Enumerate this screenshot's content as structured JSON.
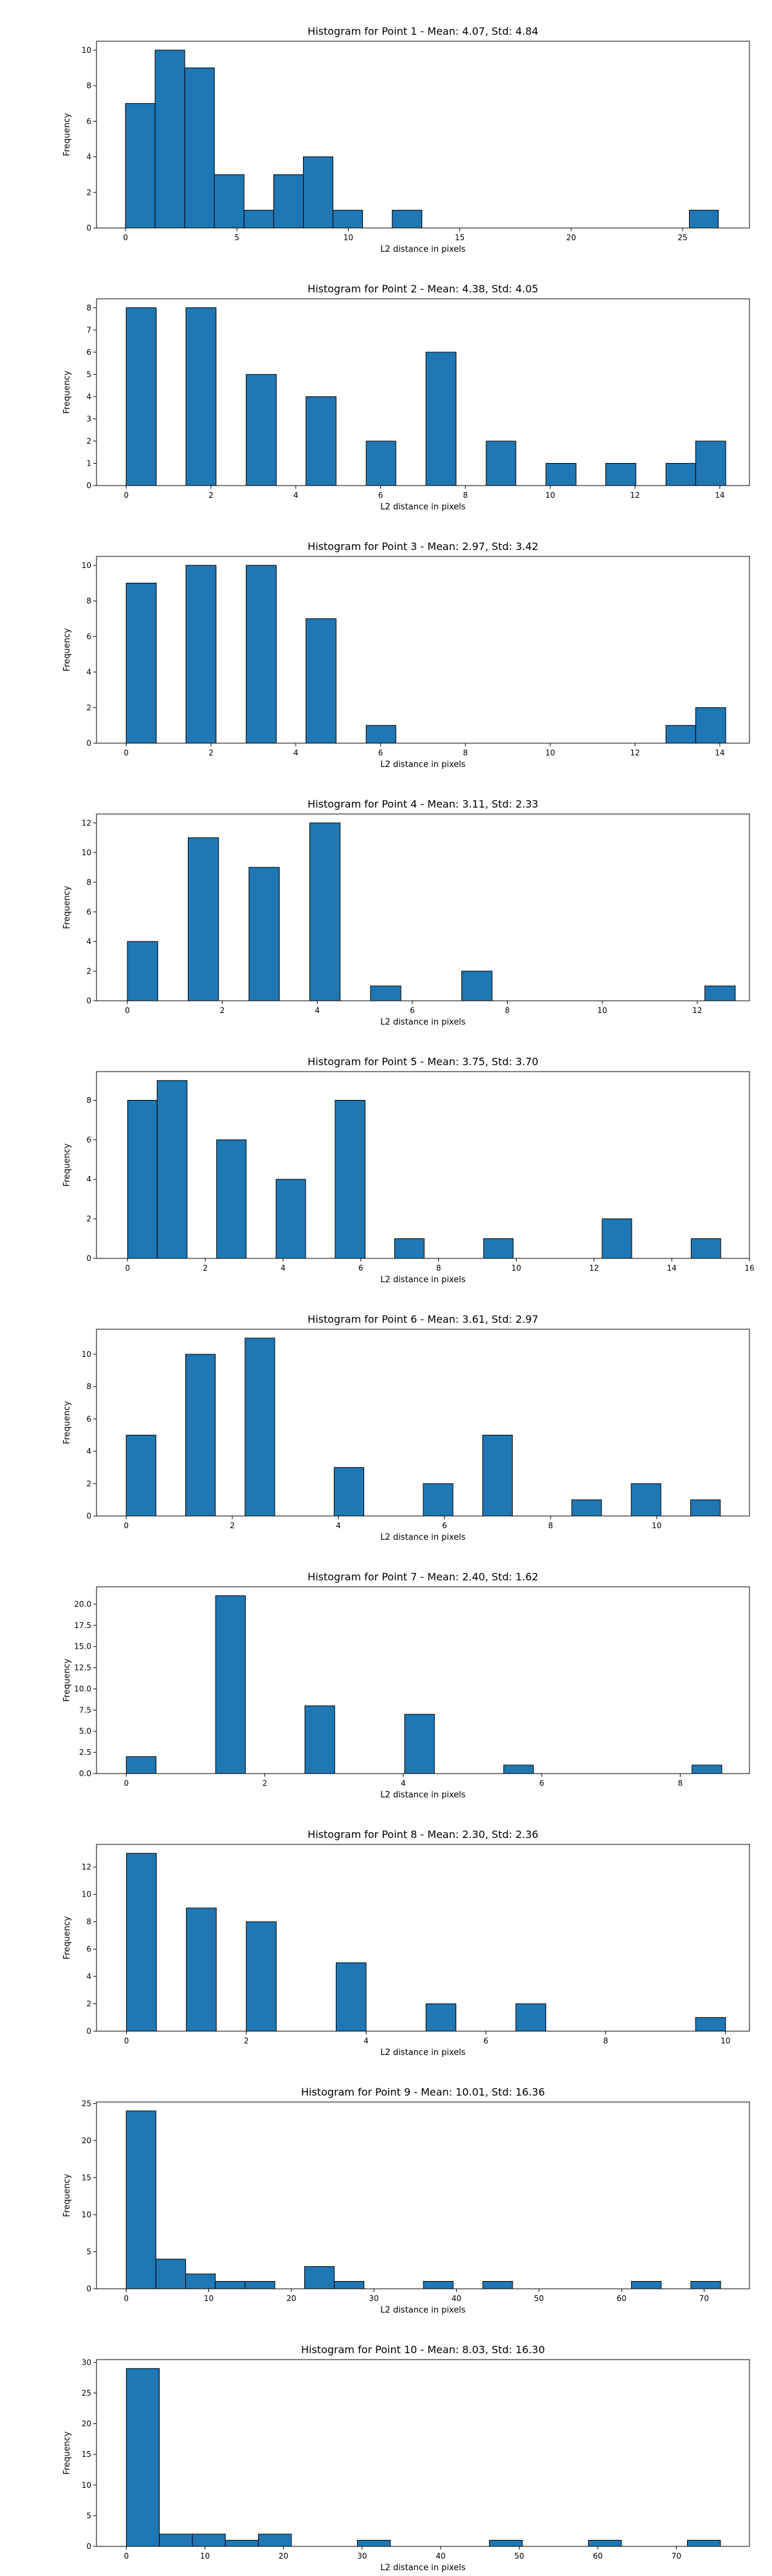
{
  "chart_data": [
    {
      "type": "bar",
      "title": "Histogram for Point 1 - Mean: 4.07, Std: 4.84",
      "xlabel": "L2 distance in pixels",
      "ylabel": "Frequency",
      "xlim": [
        -1.3,
        28.0
      ],
      "ylim": [
        0,
        10.5
      ],
      "xticks": [
        {
          "v": 0,
          "label": "0"
        },
        {
          "v": 5,
          "label": "5"
        },
        {
          "v": 10,
          "label": "10"
        },
        {
          "v": 15,
          "label": "15"
        },
        {
          "v": 20,
          "label": "20"
        },
        {
          "v": 25,
          "label": "25"
        }
      ],
      "yticks": [
        {
          "v": 0,
          "label": "0"
        },
        {
          "v": 2,
          "label": "2"
        },
        {
          "v": 4,
          "label": "4"
        },
        {
          "v": 6,
          "label": "6"
        },
        {
          "v": 8,
          "label": "8"
        },
        {
          "v": 10,
          "label": "10"
        }
      ],
      "bins": [
        {
          "x0": 0,
          "x1": 1.33,
          "count": 7
        },
        {
          "x0": 1.33,
          "x1": 2.66,
          "count": 10
        },
        {
          "x0": 2.66,
          "x1": 3.99,
          "count": 9
        },
        {
          "x0": 3.99,
          "x1": 5.32,
          "count": 3
        },
        {
          "x0": 5.32,
          "x1": 6.65,
          "count": 1
        },
        {
          "x0": 6.65,
          "x1": 7.98,
          "count": 3
        },
        {
          "x0": 7.98,
          "x1": 9.31,
          "count": 4
        },
        {
          "x0": 9.31,
          "x1": 10.64,
          "count": 1
        },
        {
          "x0": 11.97,
          "x1": 13.3,
          "count": 1
        },
        {
          "x0": 25.3,
          "x1": 26.6,
          "count": 1
        }
      ]
    },
    {
      "type": "bar",
      "title": "Histogram for Point 2 - Mean: 4.38, Std: 4.05",
      "xlabel": "L2 distance in pixels",
      "ylabel": "Frequency",
      "xlim": [
        -0.7,
        14.7
      ],
      "ylim": [
        0,
        8.4
      ],
      "xticks": [
        {
          "v": 0,
          "label": "0"
        },
        {
          "v": 2,
          "label": "2"
        },
        {
          "v": 4,
          "label": "4"
        },
        {
          "v": 6,
          "label": "6"
        },
        {
          "v": 8,
          "label": "8"
        },
        {
          "v": 10,
          "label": "10"
        },
        {
          "v": 12,
          "label": "12"
        },
        {
          "v": 14,
          "label": "14"
        }
      ],
      "yticks": [
        {
          "v": 0,
          "label": "0"
        },
        {
          "v": 1,
          "label": "1"
        },
        {
          "v": 2,
          "label": "2"
        },
        {
          "v": 3,
          "label": "3"
        },
        {
          "v": 4,
          "label": "4"
        },
        {
          "v": 5,
          "label": "5"
        },
        {
          "v": 6,
          "label": "6"
        },
        {
          "v": 7,
          "label": "7"
        },
        {
          "v": 8,
          "label": "8"
        }
      ],
      "bins": [
        {
          "x0": 0,
          "x1": 0.71,
          "count": 8
        },
        {
          "x0": 1.41,
          "x1": 2.12,
          "count": 8
        },
        {
          "x0": 2.83,
          "x1": 3.54,
          "count": 5
        },
        {
          "x0": 4.24,
          "x1": 4.95,
          "count": 4
        },
        {
          "x0": 5.66,
          "x1": 6.36,
          "count": 2
        },
        {
          "x0": 7.07,
          "x1": 7.78,
          "count": 6
        },
        {
          "x0": 8.49,
          "x1": 9.19,
          "count": 2
        },
        {
          "x0": 9.9,
          "x1": 10.61,
          "count": 1
        },
        {
          "x0": 11.31,
          "x1": 12.02,
          "count": 1
        },
        {
          "x0": 12.73,
          "x1": 13.43,
          "count": 1
        },
        {
          "x0": 13.43,
          "x1": 14.14,
          "count": 2
        }
      ]
    },
    {
      "type": "bar",
      "title": "Histogram for Point 3 - Mean: 2.97, Std: 3.42",
      "xlabel": "L2 distance in pixels",
      "ylabel": "Frequency",
      "xlim": [
        -0.7,
        14.7
      ],
      "ylim": [
        0,
        10.5
      ],
      "xticks": [
        {
          "v": 0,
          "label": "0"
        },
        {
          "v": 2,
          "label": "2"
        },
        {
          "v": 4,
          "label": "4"
        },
        {
          "v": 6,
          "label": "6"
        },
        {
          "v": 8,
          "label": "8"
        },
        {
          "v": 10,
          "label": "10"
        },
        {
          "v": 12,
          "label": "12"
        },
        {
          "v": 14,
          "label": "14"
        }
      ],
      "yticks": [
        {
          "v": 0,
          "label": "0"
        },
        {
          "v": 2,
          "label": "2"
        },
        {
          "v": 4,
          "label": "4"
        },
        {
          "v": 6,
          "label": "6"
        },
        {
          "v": 8,
          "label": "8"
        },
        {
          "v": 10,
          "label": "10"
        }
      ],
      "bins": [
        {
          "x0": 0,
          "x1": 0.71,
          "count": 9
        },
        {
          "x0": 1.41,
          "x1": 2.12,
          "count": 10
        },
        {
          "x0": 2.83,
          "x1": 3.54,
          "count": 10
        },
        {
          "x0": 4.24,
          "x1": 4.95,
          "count": 7
        },
        {
          "x0": 5.66,
          "x1": 6.36,
          "count": 1
        },
        {
          "x0": 12.73,
          "x1": 13.43,
          "count": 1
        },
        {
          "x0": 13.43,
          "x1": 14.14,
          "count": 2
        }
      ]
    },
    {
      "type": "bar",
      "title": "Histogram for Point 4 - Mean: 3.11, Std: 2.33",
      "xlabel": "L2 distance in pixels",
      "ylabel": "Frequency",
      "xlim": [
        -0.65,
        13.1
      ],
      "ylim": [
        0,
        12.6
      ],
      "xticks": [
        {
          "v": 0,
          "label": "0"
        },
        {
          "v": 2,
          "label": "2"
        },
        {
          "v": 4,
          "label": "4"
        },
        {
          "v": 6,
          "label": "6"
        },
        {
          "v": 8,
          "label": "8"
        },
        {
          "v": 10,
          "label": "10"
        },
        {
          "v": 12,
          "label": "12"
        }
      ],
      "yticks": [
        {
          "v": 0,
          "label": "0"
        },
        {
          "v": 2,
          "label": "2"
        },
        {
          "v": 4,
          "label": "4"
        },
        {
          "v": 6,
          "label": "6"
        },
        {
          "v": 8,
          "label": "8"
        },
        {
          "v": 10,
          "label": "10"
        },
        {
          "v": 12,
          "label": "12"
        }
      ],
      "bins": [
        {
          "x0": 0,
          "x1": 0.64,
          "count": 4
        },
        {
          "x0": 1.28,
          "x1": 1.92,
          "count": 11
        },
        {
          "x0": 2.56,
          "x1": 3.2,
          "count": 9
        },
        {
          "x0": 3.84,
          "x1": 4.48,
          "count": 12
        },
        {
          "x0": 5.12,
          "x1": 5.76,
          "count": 1
        },
        {
          "x0": 7.04,
          "x1": 7.68,
          "count": 2
        },
        {
          "x0": 12.16,
          "x1": 12.8,
          "count": 1
        }
      ]
    },
    {
      "type": "bar",
      "title": "Histogram for Point 5 - Mean: 3.75, Std: 3.70",
      "xlabel": "L2 distance in pixels",
      "ylabel": "Frequency",
      "xlim": [
        -0.8,
        16.0
      ],
      "ylim": [
        0,
        9.45
      ],
      "xticks": [
        {
          "v": 0,
          "label": "0"
        },
        {
          "v": 2,
          "label": "2"
        },
        {
          "v": 4,
          "label": "4"
        },
        {
          "v": 6,
          "label": "6"
        },
        {
          "v": 8,
          "label": "8"
        },
        {
          "v": 10,
          "label": "10"
        },
        {
          "v": 12,
          "label": "12"
        },
        {
          "v": 14,
          "label": "14"
        },
        {
          "v": 16,
          "label": "16"
        }
      ],
      "yticks": [
        {
          "v": 0,
          "label": "0"
        },
        {
          "v": 2,
          "label": "2"
        },
        {
          "v": 4,
          "label": "4"
        },
        {
          "v": 6,
          "label": "6"
        },
        {
          "v": 8,
          "label": "8"
        }
      ],
      "bins": [
        {
          "x0": 0,
          "x1": 0.76,
          "count": 8
        },
        {
          "x0": 0.76,
          "x1": 1.53,
          "count": 9
        },
        {
          "x0": 2.29,
          "x1": 3.05,
          "count": 6
        },
        {
          "x0": 3.82,
          "x1": 4.58,
          "count": 4
        },
        {
          "x0": 5.34,
          "x1": 6.11,
          "count": 8
        },
        {
          "x0": 6.87,
          "x1": 7.63,
          "count": 1
        },
        {
          "x0": 9.16,
          "x1": 9.92,
          "count": 1
        },
        {
          "x0": 12.21,
          "x1": 12.97,
          "count": 2
        },
        {
          "x0": 14.5,
          "x1": 15.26,
          "count": 1
        }
      ]
    },
    {
      "type": "bar",
      "title": "Histogram for Point 6 - Mean: 3.61, Std: 2.97",
      "xlabel": "L2 distance in pixels",
      "ylabel": "Frequency",
      "xlim": [
        -0.56,
        11.75
      ],
      "ylim": [
        0,
        11.55
      ],
      "xticks": [
        {
          "v": 0,
          "label": "0"
        },
        {
          "v": 2,
          "label": "2"
        },
        {
          "v": 4,
          "label": "4"
        },
        {
          "v": 6,
          "label": "6"
        },
        {
          "v": 8,
          "label": "8"
        },
        {
          "v": 10,
          "label": "10"
        }
      ],
      "yticks": [
        {
          "v": 0,
          "label": "0"
        },
        {
          "v": 2,
          "label": "2"
        },
        {
          "v": 4,
          "label": "4"
        },
        {
          "v": 6,
          "label": "6"
        },
        {
          "v": 8,
          "label": "8"
        },
        {
          "v": 10,
          "label": "10"
        }
      ],
      "bins": [
        {
          "x0": 0,
          "x1": 0.56,
          "count": 5
        },
        {
          "x0": 1.12,
          "x1": 1.68,
          "count": 10
        },
        {
          "x0": 2.24,
          "x1": 2.8,
          "count": 11
        },
        {
          "x0": 3.92,
          "x1": 4.48,
          "count": 3
        },
        {
          "x0": 5.6,
          "x1": 6.16,
          "count": 2
        },
        {
          "x0": 6.72,
          "x1": 7.28,
          "count": 5
        },
        {
          "x0": 8.4,
          "x1": 8.96,
          "count": 1
        },
        {
          "x0": 9.52,
          "x1": 10.08,
          "count": 2
        },
        {
          "x0": 10.64,
          "x1": 11.2,
          "count": 1
        }
      ]
    },
    {
      "type": "bar",
      "title": "Histogram for Point 7 - Mean: 2.40, Std: 1.62",
      "xlabel": "L2 distance in pixels",
      "ylabel": "Frequency",
      "xlim": [
        -0.43,
        9.0
      ],
      "ylim": [
        0,
        22.05
      ],
      "xticks": [
        {
          "v": 0,
          "label": "0"
        },
        {
          "v": 2,
          "label": "2"
        },
        {
          "v": 4,
          "label": "4"
        },
        {
          "v": 6,
          "label": "6"
        },
        {
          "v": 8,
          "label": "8"
        }
      ],
      "yticks": [
        {
          "v": 0,
          "label": "0.0"
        },
        {
          "v": 2.5,
          "label": "2.5"
        },
        {
          "v": 5,
          "label": "5.0"
        },
        {
          "v": 7.5,
          "label": "7.5"
        },
        {
          "v": 10,
          "label": "10.0"
        },
        {
          "v": 12.5,
          "label": "12.5"
        },
        {
          "v": 15,
          "label": "15.0"
        },
        {
          "v": 17.5,
          "label": "17.5"
        },
        {
          "v": 20,
          "label": "20.0"
        }
      ],
      "bins": [
        {
          "x0": 0,
          "x1": 0.43,
          "count": 2
        },
        {
          "x0": 1.29,
          "x1": 1.72,
          "count": 21
        },
        {
          "x0": 2.58,
          "x1": 3.01,
          "count": 8
        },
        {
          "x0": 4.02,
          "x1": 4.45,
          "count": 7
        },
        {
          "x0": 5.45,
          "x1": 5.88,
          "count": 1
        },
        {
          "x0": 8.17,
          "x1": 8.6,
          "count": 1
        }
      ]
    },
    {
      "type": "bar",
      "title": "Histogram for Point 8 - Mean: 2.30, Std: 2.36",
      "xlabel": "L2 distance in pixels",
      "ylabel": "Frequency",
      "xlim": [
        -0.5,
        10.4
      ],
      "ylim": [
        0,
        13.65
      ],
      "xticks": [
        {
          "v": 0,
          "label": "0"
        },
        {
          "v": 2,
          "label": "2"
        },
        {
          "v": 4,
          "label": "4"
        },
        {
          "v": 6,
          "label": "6"
        },
        {
          "v": 8,
          "label": "8"
        },
        {
          "v": 10,
          "label": "10"
        }
      ],
      "yticks": [
        {
          "v": 0,
          "label": "0"
        },
        {
          "v": 2,
          "label": "2"
        },
        {
          "v": 4,
          "label": "4"
        },
        {
          "v": 6,
          "label": "6"
        },
        {
          "v": 8,
          "label": "8"
        },
        {
          "v": 10,
          "label": "10"
        },
        {
          "v": 12,
          "label": "12"
        }
      ],
      "bins": [
        {
          "x0": 0,
          "x1": 0.5,
          "count": 13
        },
        {
          "x0": 1.0,
          "x1": 1.5,
          "count": 9
        },
        {
          "x0": 2.0,
          "x1": 2.5,
          "count": 8
        },
        {
          "x0": 3.5,
          "x1": 4.0,
          "count": 5
        },
        {
          "x0": 5.0,
          "x1": 5.5,
          "count": 2
        },
        {
          "x0": 6.5,
          "x1": 7.0,
          "count": 2
        },
        {
          "x0": 9.5,
          "x1": 10.0,
          "count": 1
        }
      ]
    },
    {
      "type": "bar",
      "title": "Histogram for Point 9 - Mean: 10.01, Std: 16.36",
      "xlabel": "L2 distance in pixels",
      "ylabel": "Frequency",
      "xlim": [
        -3.6,
        75.5
      ],
      "ylim": [
        0,
        25.2
      ],
      "xticks": [
        {
          "v": 0,
          "label": "0"
        },
        {
          "v": 10,
          "label": "10"
        },
        {
          "v": 20,
          "label": "20"
        },
        {
          "v": 30,
          "label": "30"
        },
        {
          "v": 40,
          "label": "40"
        },
        {
          "v": 50,
          "label": "50"
        },
        {
          "v": 60,
          "label": "60"
        },
        {
          "v": 70,
          "label": "70"
        }
      ],
      "yticks": [
        {
          "v": 0,
          "label": "0"
        },
        {
          "v": 5,
          "label": "5"
        },
        {
          "v": 10,
          "label": "10"
        },
        {
          "v": 15,
          "label": "15"
        },
        {
          "v": 20,
          "label": "20"
        },
        {
          "v": 25,
          "label": "25"
        }
      ],
      "bins": [
        {
          "x0": 0,
          "x1": 3.6,
          "count": 24
        },
        {
          "x0": 3.6,
          "x1": 7.2,
          "count": 4
        },
        {
          "x0": 7.2,
          "x1": 10.8,
          "count": 2
        },
        {
          "x0": 10.8,
          "x1": 14.4,
          "count": 1
        },
        {
          "x0": 14.4,
          "x1": 18.0,
          "count": 1
        },
        {
          "x0": 21.6,
          "x1": 25.2,
          "count": 3
        },
        {
          "x0": 25.2,
          "x1": 28.8,
          "count": 1
        },
        {
          "x0": 36.0,
          "x1": 39.6,
          "count": 1
        },
        {
          "x0": 43.2,
          "x1": 46.8,
          "count": 1
        },
        {
          "x0": 61.2,
          "x1": 64.8,
          "count": 1
        },
        {
          "x0": 68.4,
          "x1": 72.0,
          "count": 1
        }
      ]
    },
    {
      "type": "bar",
      "title": "Histogram for Point 10 - Mean: 8.03, Std: 16.30",
      "xlabel": "L2 distance in pixels",
      "ylabel": "Frequency",
      "xlim": [
        -3.8,
        79.3
      ],
      "ylim": [
        0,
        30.45
      ],
      "xticks": [
        {
          "v": 0,
          "label": "0"
        },
        {
          "v": 10,
          "label": "10"
        },
        {
          "v": 20,
          "label": "20"
        },
        {
          "v": 30,
          "label": "30"
        },
        {
          "v": 40,
          "label": "40"
        },
        {
          "v": 50,
          "label": "50"
        },
        {
          "v": 60,
          "label": "60"
        },
        {
          "v": 70,
          "label": "70"
        }
      ],
      "yticks": [
        {
          "v": 0,
          "label": "0"
        },
        {
          "v": 5,
          "label": "5"
        },
        {
          "v": 10,
          "label": "10"
        },
        {
          "v": 15,
          "label": "15"
        },
        {
          "v": 20,
          "label": "20"
        },
        {
          "v": 25,
          "label": "25"
        },
        {
          "v": 30,
          "label": "30"
        }
      ],
      "bins": [
        {
          "x0": 0,
          "x1": 4.2,
          "count": 29
        },
        {
          "x0": 4.2,
          "x1": 8.4,
          "count": 2
        },
        {
          "x0": 8.4,
          "x1": 12.6,
          "count": 2
        },
        {
          "x0": 12.6,
          "x1": 16.8,
          "count": 1
        },
        {
          "x0": 16.8,
          "x1": 21.0,
          "count": 2
        },
        {
          "x0": 29.4,
          "x1": 33.6,
          "count": 1
        },
        {
          "x0": 46.2,
          "x1": 50.4,
          "count": 1
        },
        {
          "x0": 58.8,
          "x1": 63.0,
          "count": 1
        },
        {
          "x0": 71.4,
          "x1": 75.6,
          "count": 1
        }
      ]
    }
  ]
}
